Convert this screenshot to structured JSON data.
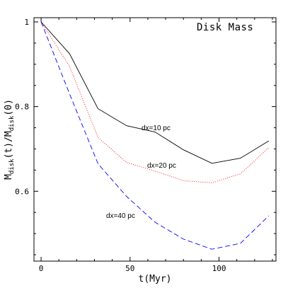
{
  "chart_data": {
    "type": "line",
    "title": "Disk Mass",
    "xlabel": "t(Myr)",
    "ylabel": {
      "base": "M",
      "sub1": "disk",
      "mid": "(t)/M",
      "sub2": "disk",
      "end": "(0)"
    },
    "xlim": [
      -4,
      132
    ],
    "ylim": [
      0.435,
      1.01
    ],
    "xticks": [
      0,
      50,
      100
    ],
    "xtick_labels": [
      "0",
      "50",
      "100"
    ],
    "yticks": [
      0.6,
      0.8,
      1.0
    ],
    "ytick_labels": [
      "0.6",
      "0.8",
      "1"
    ],
    "grid": false,
    "legend": "none",
    "series": [
      {
        "name": "dx=10 pc",
        "color": "#000000",
        "style": "solid",
        "x": [
          0,
          16,
          32,
          48,
          64,
          80,
          96,
          112,
          128
        ],
        "y": [
          1.0,
          0.925,
          0.795,
          0.755,
          0.74,
          0.698,
          0.666,
          0.678,
          0.719
        ]
      },
      {
        "name": "dx=20 pc",
        "color": "#ff0000",
        "style": "dotted",
        "x": [
          0,
          16,
          32,
          48,
          64,
          80,
          96,
          112,
          128
        ],
        "y": [
          1.0,
          0.895,
          0.727,
          0.668,
          0.648,
          0.625,
          0.62,
          0.641,
          0.703
        ]
      },
      {
        "name": "dx=40 pc",
        "color": "#0000ff",
        "style": "dashed",
        "x": [
          0,
          16,
          32,
          48,
          64,
          80,
          96,
          112,
          128
        ],
        "y": [
          1.0,
          0.83,
          0.665,
          0.588,
          0.527,
          0.487,
          0.463,
          0.477,
          0.542
        ]
      }
    ]
  }
}
